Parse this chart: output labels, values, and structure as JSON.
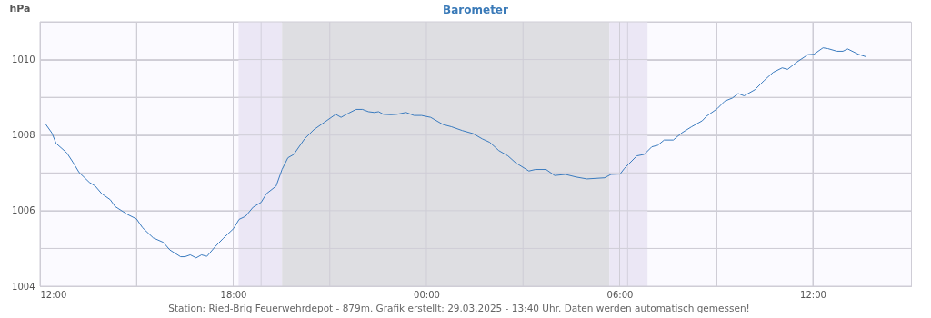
{
  "chart_data": {
    "type": "line",
    "title": "Barometer",
    "ylabel": "hPa",
    "annotations": [
      "Station: Ried-Brig Feuerwehrdepot - 879m. Grafik erstellt: 29.03.2025 - 13:40 Uhr. Daten werden automatisch gemessen!"
    ],
    "x": [
      "2025-03-28T12:11",
      "2025-03-28T12:22",
      "2025-03-28T12:30",
      "2025-03-28T12:50",
      "2025-03-28T13:01",
      "2025-03-28T13:13",
      "2025-03-28T13:32",
      "2025-03-28T13:43",
      "2025-03-28T13:55",
      "2025-03-28T14:11",
      "2025-03-28T14:20",
      "2025-03-28T14:43",
      "2025-03-28T15:00",
      "2025-03-28T15:11",
      "2025-03-28T15:31",
      "2025-03-28T15:50",
      "2025-03-28T16:02",
      "2025-03-28T16:22",
      "2025-03-28T16:30",
      "2025-03-28T16:40",
      "2025-03-28T16:51",
      "2025-03-28T17:01",
      "2025-03-28T17:11",
      "2025-03-28T17:26",
      "2025-03-28T17:41",
      "2025-03-28T18:01",
      "2025-03-28T18:11",
      "2025-03-28T18:23",
      "2025-03-28T18:37",
      "2025-03-28T18:52",
      "2025-03-28T19:02",
      "2025-03-28T19:20",
      "2025-03-28T19:31",
      "2025-03-28T19:42",
      "2025-03-28T19:53",
      "2025-03-28T20:13",
      "2025-03-28T20:30",
      "2025-03-28T20:50",
      "2025-03-28T21:11",
      "2025-03-28T21:21",
      "2025-03-28T21:35",
      "2025-03-28T21:49",
      "2025-03-28T22:01",
      "2025-03-28T22:12",
      "2025-03-28T22:23",
      "2025-03-28T22:31",
      "2025-03-28T22:40",
      "2025-03-28T22:54",
      "2025-03-28T23:05",
      "2025-03-28T23:22",
      "2025-03-28T23:37",
      "2025-03-28T23:51",
      "2025-03-29T00:08",
      "2025-03-29T00:31",
      "2025-03-29T00:47",
      "2025-03-29T01:07",
      "2025-03-29T01:27",
      "2025-03-29T01:44",
      "2025-03-29T01:58",
      "2025-03-29T02:15",
      "2025-03-29T02:32",
      "2025-03-29T02:46",
      "2025-03-29T03:11",
      "2025-03-29T03:23",
      "2025-03-29T03:43",
      "2025-03-29T03:59",
      "2025-03-29T04:19",
      "2025-03-29T04:39",
      "2025-03-29T04:59",
      "2025-03-29T05:32",
      "2025-03-29T05:44",
      "2025-03-29T06:01",
      "2025-03-29T06:09",
      "2025-03-29T06:32",
      "2025-03-29T06:46",
      "2025-03-29T07:00",
      "2025-03-29T07:11",
      "2025-03-29T07:23",
      "2025-03-29T07:40",
      "2025-03-29T07:56",
      "2025-03-29T08:14",
      "2025-03-29T08:34",
      "2025-03-29T08:42",
      "2025-03-29T09:02",
      "2025-03-29T09:16",
      "2025-03-29T09:30",
      "2025-03-29T09:41",
      "2025-03-29T09:52",
      "2025-03-29T10:12",
      "2025-03-29T10:29",
      "2025-03-29T10:46",
      "2025-03-29T11:03",
      "2025-03-29T11:13",
      "2025-03-29T11:31",
      "2025-03-29T11:51",
      "2025-03-29T12:02",
      "2025-03-29T12:19",
      "2025-03-29T12:28",
      "2025-03-29T12:45",
      "2025-03-29T12:56",
      "2025-03-29T13:05",
      "2025-03-29T13:25",
      "2025-03-29T13:40"
    ],
    "series": [
      {
        "color": "#3a7bbf",
        "values": [
          1008.28,
          1008.06,
          1007.78,
          1007.53,
          1007.29,
          1007.01,
          1006.75,
          1006.65,
          1006.45,
          1006.29,
          1006.11,
          1005.9,
          1005.78,
          1005.55,
          1005.28,
          1005.16,
          1004.96,
          1004.78,
          1004.78,
          1004.83,
          1004.75,
          1004.83,
          1004.79,
          1005.04,
          1005.26,
          1005.53,
          1005.77,
          1005.85,
          1006.09,
          1006.22,
          1006.45,
          1006.65,
          1007.09,
          1007.4,
          1007.49,
          1007.9,
          1008.14,
          1008.34,
          1008.55,
          1008.47,
          1008.58,
          1008.68,
          1008.68,
          1008.62,
          1008.6,
          1008.62,
          1008.55,
          1008.54,
          1008.55,
          1008.6,
          1008.52,
          1008.52,
          1008.47,
          1008.28,
          1008.22,
          1008.12,
          1008.04,
          1007.9,
          1007.81,
          1007.59,
          1007.45,
          1007.27,
          1007.05,
          1007.09,
          1007.09,
          1006.93,
          1006.96,
          1006.89,
          1006.84,
          1006.87,
          1006.96,
          1006.97,
          1007.12,
          1007.45,
          1007.49,
          1007.69,
          1007.73,
          1007.87,
          1007.87,
          1008.06,
          1008.22,
          1008.38,
          1008.5,
          1008.7,
          1008.9,
          1008.98,
          1009.1,
          1009.04,
          1009.2,
          1009.44,
          1009.66,
          1009.78,
          1009.74,
          1009.94,
          1010.13,
          1010.14,
          1010.31,
          1010.29,
          1010.22,
          1010.22,
          1010.28,
          1010.14,
          1010.07
        ]
      }
    ],
    "xlim": [
      "2025-03-28T12:00",
      "2025-03-29T15:03"
    ],
    "xticks": [
      {
        "value": "2025-03-28T12:00",
        "label": "12:00"
      },
      {
        "value": "2025-03-28T15:00",
        "label": null
      },
      {
        "value": "2025-03-28T18:00",
        "label": "18:00"
      },
      {
        "value": "2025-03-28T21:00",
        "label": null
      },
      {
        "value": "2025-03-29T00:00",
        "label": "00:00"
      },
      {
        "value": "2025-03-29T03:00",
        "label": null
      },
      {
        "value": "2025-03-29T06:00",
        "label": "06:00"
      },
      {
        "value": "2025-03-29T09:00",
        "label": null
      },
      {
        "value": "2025-03-29T12:00",
        "label": "12:00"
      }
    ],
    "ylim": [
      1004,
      1011
    ],
    "yticks": [
      1004,
      {
        "value": 1005,
        "label": null
      },
      1006,
      {
        "value": 1007,
        "label": null
      },
      1008,
      {
        "value": 1009,
        "label": null
      },
      1010,
      {
        "value": 1011,
        "label": null
      }
    ],
    "grid": true,
    "bands": [
      {
        "axis": "x",
        "from": "2025-03-28T18:10",
        "to": "2025-03-28T19:31",
        "label": null,
        "color": "#ebe7f5"
      },
      {
        "axis": "x",
        "from": "2025-03-28T19:31",
        "to": "2025-03-29T05:41",
        "label": null,
        "color": "#dedee2"
      },
      {
        "axis": "x",
        "from": "2025-03-29T05:41",
        "to": "2025-03-29T06:52",
        "label": null,
        "color": "#ebe7f5"
      }
    ],
    "ref_lines": [
      {
        "axis": "x",
        "value": "2025-03-28T18:52",
        "label": null,
        "color": "#d3d0dc"
      },
      {
        "axis": "x",
        "value": "2025-03-29T06:15",
        "label": null,
        "color": "#d3d0dc"
      }
    ]
  }
}
